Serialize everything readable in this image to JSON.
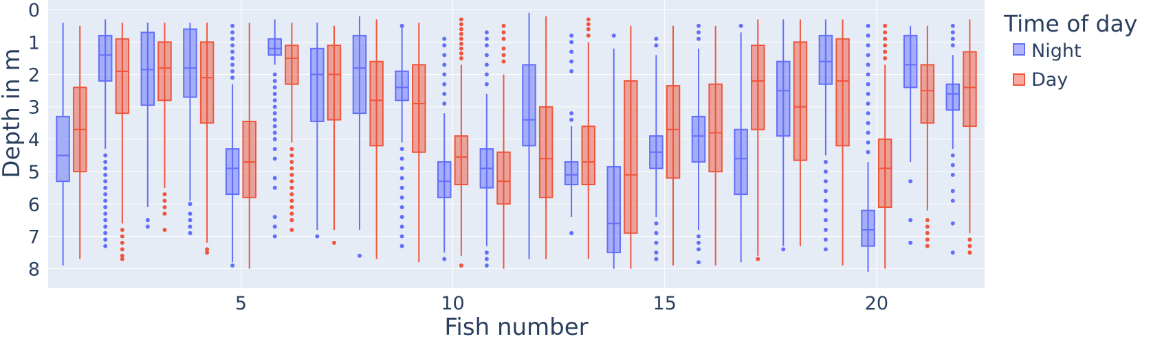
{
  "chart_data": {
    "type": "box",
    "xlabel": "Fish number",
    "ylabel": "Depth in m",
    "x_ticks": [
      5,
      10,
      15,
      20
    ],
    "y_ticks": [
      0,
      1,
      2,
      3,
      4,
      5,
      6,
      7,
      8
    ],
    "y_reversed": true,
    "xlim": [
      0.45,
      22.55
    ],
    "ylim": [
      8.6,
      -0.3
    ],
    "grid": true,
    "background_color": "#e5ecf6",
    "legend": {
      "title": "Time of day",
      "placement": "right-top",
      "entries": [
        "Night",
        "Day"
      ]
    },
    "series": [
      {
        "name": "Night",
        "color": "#636efa",
        "boxes": [
          {
            "x": 1,
            "lower": 7.9,
            "q1": 3.3,
            "median": 4.5,
            "q3": 5.3,
            "upper": 0.4,
            "outliers": []
          },
          {
            "x": 2,
            "lower": 0.3,
            "q1": 0.8,
            "median": 1.4,
            "q3": 2.2,
            "upper": 4.3,
            "outliers": [
              4.5,
              4.7,
              4.9,
              5.1,
              5.3,
              5.5,
              5.7,
              5.9,
              6.1,
              6.3,
              6.5,
              6.7,
              6.9,
              7.1,
              7.3
            ]
          },
          {
            "x": 3,
            "lower": 0.4,
            "q1": 0.7,
            "median": 1.85,
            "q3": 2.95,
            "upper": 6.1,
            "outliers": [
              6.5,
              6.7
            ]
          },
          {
            "x": 4,
            "lower": 0.4,
            "q1": 0.6,
            "median": 1.8,
            "q3": 2.7,
            "upper": 5.9,
            "outliers": [
              6.0,
              6.3,
              6.5,
              6.7,
              6.9
            ]
          },
          {
            "x": 5,
            "lower": 2.3,
            "q1": 4.3,
            "median": 4.9,
            "q3": 5.7,
            "upper": 7.8,
            "outliers": [
              0.5,
              0.7,
              0.9,
              1.1,
              1.3,
              1.5,
              1.7,
              1.9,
              2.1,
              7.9
            ]
          },
          {
            "x": 6,
            "lower": 0.3,
            "q1": 0.9,
            "median": 1.2,
            "q3": 1.4,
            "upper": 1.7,
            "outliers": [
              2.0,
              2.2,
              2.4,
              2.6,
              2.8,
              3.0,
              3.2,
              3.4,
              3.6,
              3.8,
              4.0,
              4.3,
              4.6,
              5.2,
              5.5,
              6.4,
              6.7,
              7.0
            ]
          },
          {
            "x": 7,
            "lower": 0.4,
            "q1": 1.2,
            "median": 2.0,
            "q3": 3.45,
            "upper": 6.8,
            "outliers": [
              7.0
            ]
          },
          {
            "x": 8,
            "lower": 0.2,
            "q1": 0.8,
            "median": 1.8,
            "q3": 3.2,
            "upper": 6.8,
            "outliers": [
              7.6
            ]
          },
          {
            "x": 9,
            "lower": 0.5,
            "q1": 1.9,
            "median": 2.4,
            "q3": 2.8,
            "upper": 4.1,
            "outliers": [
              0.5,
              4.3,
              4.6,
              4.9,
              5.2,
              5.5,
              5.8,
              6.1,
              6.4,
              6.7,
              7.0,
              7.3
            ]
          },
          {
            "x": 10,
            "lower": 3.2,
            "q1": 4.7,
            "median": 5.3,
            "q3": 5.8,
            "upper": 7.5,
            "outliers": [
              0.9,
              1.1,
              1.4,
              1.7,
              2.0,
              2.3,
              2.6,
              2.9,
              7.7
            ]
          },
          {
            "x": 11,
            "lower": 2.6,
            "q1": 4.3,
            "median": 4.9,
            "q3": 5.5,
            "upper": 7.3,
            "outliers": [
              0.7,
              0.9,
              1.1,
              1.4,
              1.7,
              2.0,
              2.3,
              7.5,
              7.7,
              7.9
            ]
          },
          {
            "x": 12,
            "lower": 0.1,
            "q1": 1.7,
            "median": 3.4,
            "q3": 4.2,
            "upper": 7.7,
            "outliers": []
          },
          {
            "x": 13,
            "lower": 3.6,
            "q1": 4.7,
            "median": 5.1,
            "q3": 5.4,
            "upper": 6.4,
            "outliers": [
              0.8,
              1.0,
              1.3,
              1.6,
              1.9,
              3.2,
              3.4,
              6.9
            ]
          },
          {
            "x": 14,
            "lower": 1.2,
            "q1": 4.85,
            "median": 6.6,
            "q3": 7.5,
            "upper": 8.0,
            "outliers": [
              0.8
            ]
          },
          {
            "x": 15,
            "lower": 1.4,
            "q1": 3.9,
            "median": 4.4,
            "q3": 4.9,
            "upper": 6.4,
            "outliers": [
              0.9,
              1.1,
              6.6,
              6.9,
              7.2,
              7.5,
              7.7
            ]
          },
          {
            "x": 16,
            "lower": 1.2,
            "q1": 3.3,
            "median": 3.9,
            "q3": 4.7,
            "upper": 6.8,
            "outliers": [
              0.5,
              0.7,
              0.9,
              7.0,
              7.2,
              7.4,
              7.8
            ]
          },
          {
            "x": 17,
            "lower": 0.7,
            "q1": 3.7,
            "median": 4.6,
            "q3": 5.7,
            "upper": 7.8,
            "outliers": [
              0.5
            ]
          },
          {
            "x": 18,
            "lower": 0.3,
            "q1": 1.6,
            "median": 2.5,
            "q3": 3.9,
            "upper": 7.3,
            "outliers": [
              7.4
            ]
          },
          {
            "x": 19,
            "lower": 0.3,
            "q1": 0.8,
            "median": 1.6,
            "q3": 2.3,
            "upper": 4.5,
            "outliers": [
              4.7,
              5.0,
              5.3,
              5.6,
              5.9,
              6.2,
              6.5,
              6.8,
              7.1,
              7.4
            ]
          },
          {
            "x": 20,
            "lower": 4.7,
            "q1": 6.2,
            "median": 6.8,
            "q3": 7.3,
            "upper": 8.1,
            "outliers": [
              0.5,
              0.8,
              1.1,
              1.4,
              1.7,
              2.0,
              2.3,
              2.6,
              2.9,
              3.2,
              3.5,
              3.8,
              4.1,
              4.4
            ]
          },
          {
            "x": 21,
            "lower": 0.5,
            "q1": 0.8,
            "median": 1.7,
            "q3": 2.4,
            "upper": 4.7,
            "outliers": [
              5.3,
              6.5,
              7.2
            ]
          },
          {
            "x": 22,
            "lower": 1.4,
            "q1": 2.3,
            "median": 2.6,
            "q3": 3.1,
            "upper": 4.3,
            "outliers": [
              0.5,
              0.7,
              0.9,
              1.1,
              4.5,
              4.8,
              5.1,
              5.6,
              5.9,
              6.6,
              7.5
            ]
          }
        ]
      },
      {
        "name": "Day",
        "color": "#ef553b",
        "boxes": [
          {
            "x": 1,
            "lower": 0.5,
            "q1": 2.4,
            "median": 3.7,
            "q3": 5.0,
            "upper": 7.7,
            "outliers": []
          },
          {
            "x": 2,
            "lower": 0.4,
            "q1": 0.9,
            "median": 1.9,
            "q3": 3.2,
            "upper": 6.6,
            "outliers": [
              6.8,
              7.0,
              7.2,
              7.4,
              7.6,
              7.7
            ]
          },
          {
            "x": 3,
            "lower": 0.4,
            "q1": 1.0,
            "median": 1.8,
            "q3": 2.8,
            "upper": 5.5,
            "outliers": [
              5.7,
              5.9,
              6.1,
              6.3,
              6.8
            ]
          },
          {
            "x": 4,
            "lower": 0.4,
            "q1": 1.0,
            "median": 2.1,
            "q3": 3.5,
            "upper": 7.2,
            "outliers": [
              7.4,
              7.5
            ]
          },
          {
            "x": 5,
            "lower": 0.4,
            "q1": 3.45,
            "median": 4.7,
            "q3": 5.8,
            "upper": 8.0,
            "outliers": []
          },
          {
            "x": 6,
            "lower": 0.4,
            "q1": 1.1,
            "median": 1.5,
            "q3": 2.3,
            "upper": 4.1,
            "outliers": [
              4.3,
              4.5,
              4.7,
              4.9,
              5.1,
              5.3,
              5.5,
              5.7,
              5.9,
              6.1,
              6.3,
              6.5,
              6.8
            ]
          },
          {
            "x": 7,
            "lower": 0.5,
            "q1": 1.1,
            "median": 2.0,
            "q3": 3.4,
            "upper": 6.8,
            "outliers": [
              7.2
            ]
          },
          {
            "x": 8,
            "lower": 0.3,
            "q1": 1.6,
            "median": 2.8,
            "q3": 4.2,
            "upper": 7.7,
            "outliers": []
          },
          {
            "x": 9,
            "lower": 0.4,
            "q1": 1.7,
            "median": 2.9,
            "q3": 4.4,
            "upper": 7.8,
            "outliers": []
          },
          {
            "x": 10,
            "lower": 1.7,
            "q1": 3.9,
            "median": 4.55,
            "q3": 5.4,
            "upper": 7.6,
            "outliers": [
              0.3,
              0.45,
              0.6,
              0.75,
              0.9,
              1.05,
              1.2,
              1.35,
              1.5,
              7.9
            ]
          },
          {
            "x": 11,
            "lower": 2.0,
            "q1": 4.4,
            "median": 5.3,
            "q3": 6.0,
            "upper": 8.0,
            "outliers": [
              0.5,
              0.7,
              0.9,
              1.2,
              1.4,
              1.6
            ]
          },
          {
            "x": 12,
            "lower": 0.2,
            "q1": 3.0,
            "median": 4.6,
            "q3": 5.8,
            "upper": 7.7,
            "outliers": []
          },
          {
            "x": 13,
            "lower": 1.0,
            "q1": 3.6,
            "median": 4.7,
            "q3": 5.4,
            "upper": 7.7,
            "outliers": [
              0.3,
              0.45,
              0.6,
              0.8
            ]
          },
          {
            "x": 14,
            "lower": 0.5,
            "q1": 2.2,
            "median": 5.1,
            "q3": 6.9,
            "upper": 8.0,
            "outliers": []
          },
          {
            "x": 15,
            "lower": 0.5,
            "q1": 2.35,
            "median": 3.7,
            "q3": 5.2,
            "upper": 7.9,
            "outliers": []
          },
          {
            "x": 16,
            "lower": 0.5,
            "q1": 2.3,
            "median": 3.8,
            "q3": 5.0,
            "upper": 7.9,
            "outliers": []
          },
          {
            "x": 17,
            "lower": 0.3,
            "q1": 1.1,
            "median": 2.2,
            "q3": 3.7,
            "upper": 7.6,
            "outliers": [
              7.7
            ]
          },
          {
            "x": 18,
            "lower": 0.3,
            "q1": 1.0,
            "median": 3.0,
            "q3": 4.65,
            "upper": 7.3,
            "outliers": []
          },
          {
            "x": 19,
            "lower": 0.3,
            "q1": 0.9,
            "median": 2.2,
            "q3": 4.2,
            "upper": 7.9,
            "outliers": []
          },
          {
            "x": 20,
            "lower": 1.7,
            "q1": 4.0,
            "median": 4.9,
            "q3": 6.1,
            "upper": 8.0,
            "outliers": [
              0.5,
              0.7,
              0.9,
              1.1,
              1.3,
              1.5
            ]
          },
          {
            "x": 21,
            "lower": 0.5,
            "q1": 1.7,
            "median": 2.5,
            "q3": 3.5,
            "upper": 6.2,
            "outliers": [
              6.5,
              6.7,
              6.9,
              7.1,
              7.3
            ]
          },
          {
            "x": 22,
            "lower": 0.3,
            "q1": 1.3,
            "median": 2.4,
            "q3": 3.6,
            "upper": 6.9,
            "outliers": [
              7.1,
              7.3,
              7.5
            ]
          }
        ]
      }
    ]
  }
}
